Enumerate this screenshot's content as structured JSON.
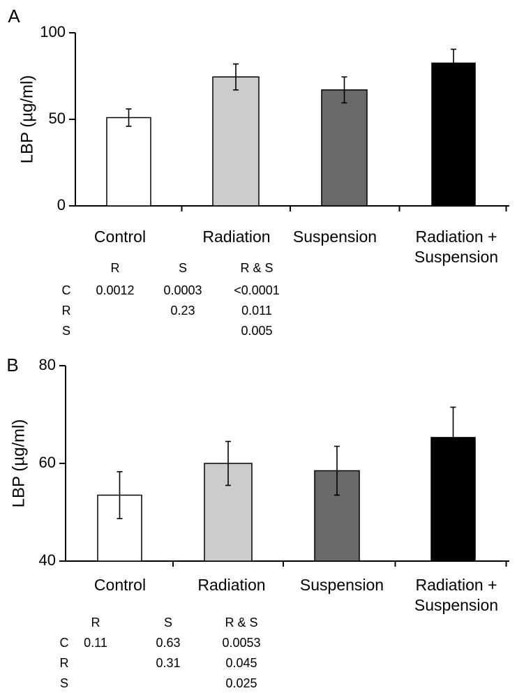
{
  "chart_data": [
    {
      "type": "bar",
      "panel_label": "A",
      "ylabel": "LBP (µg/ml)",
      "ylim": [
        0,
        100
      ],
      "yticks": [
        0,
        50,
        100
      ],
      "categories": [
        "Control",
        "Radiation",
        "Suspension",
        "Radiation + Suspension"
      ],
      "category_label_lines": [
        [
          "Control"
        ],
        [
          "Radiation"
        ],
        [
          "Suspension"
        ],
        [
          "Radiation +",
          "Suspension"
        ]
      ],
      "values": [
        51,
        74.5,
        67,
        82.5
      ],
      "errors": [
        5,
        7.5,
        7.5,
        8
      ],
      "colors": [
        "#ffffff",
        "#cccccc",
        "#696969",
        "#000000"
      ],
      "pvalue_table": {
        "columns": [
          "R",
          "S",
          "R & S"
        ],
        "rows": [
          {
            "label": "C",
            "cells": [
              "0.0012",
              "0.0003",
              "<0.0001"
            ]
          },
          {
            "label": "R",
            "cells": [
              "",
              "0.23",
              "0.011"
            ]
          },
          {
            "label": "S",
            "cells": [
              "",
              "",
              "0.005"
            ]
          }
        ]
      }
    },
    {
      "type": "bar",
      "panel_label": "B",
      "ylabel": "LBP (µg/ml)",
      "ylim": [
        40,
        80
      ],
      "yticks": [
        40,
        60,
        80
      ],
      "categories": [
        "Control",
        "Radiation",
        "Suspension",
        "Radiation + Suspension"
      ],
      "category_label_lines": [
        [
          "Control"
        ],
        [
          "Radiation"
        ],
        [
          "Suspension"
        ],
        [
          "Radiation +",
          "Suspension"
        ]
      ],
      "values": [
        53.5,
        60,
        58.5,
        65.3
      ],
      "errors": [
        4.8,
        4.5,
        5,
        6.2
      ],
      "colors": [
        "#ffffff",
        "#cccccc",
        "#696969",
        "#000000"
      ],
      "pvalue_table": {
        "columns": [
          "R",
          "S",
          "R & S"
        ],
        "rows": [
          {
            "label": "C",
            "cells": [
              "0.11",
              "0.63",
              "0.0053"
            ]
          },
          {
            "label": "R",
            "cells": [
              "",
              "0.31",
              "0.045"
            ]
          },
          {
            "label": "S",
            "cells": [
              "",
              "",
              "0.025"
            ]
          }
        ]
      }
    }
  ]
}
